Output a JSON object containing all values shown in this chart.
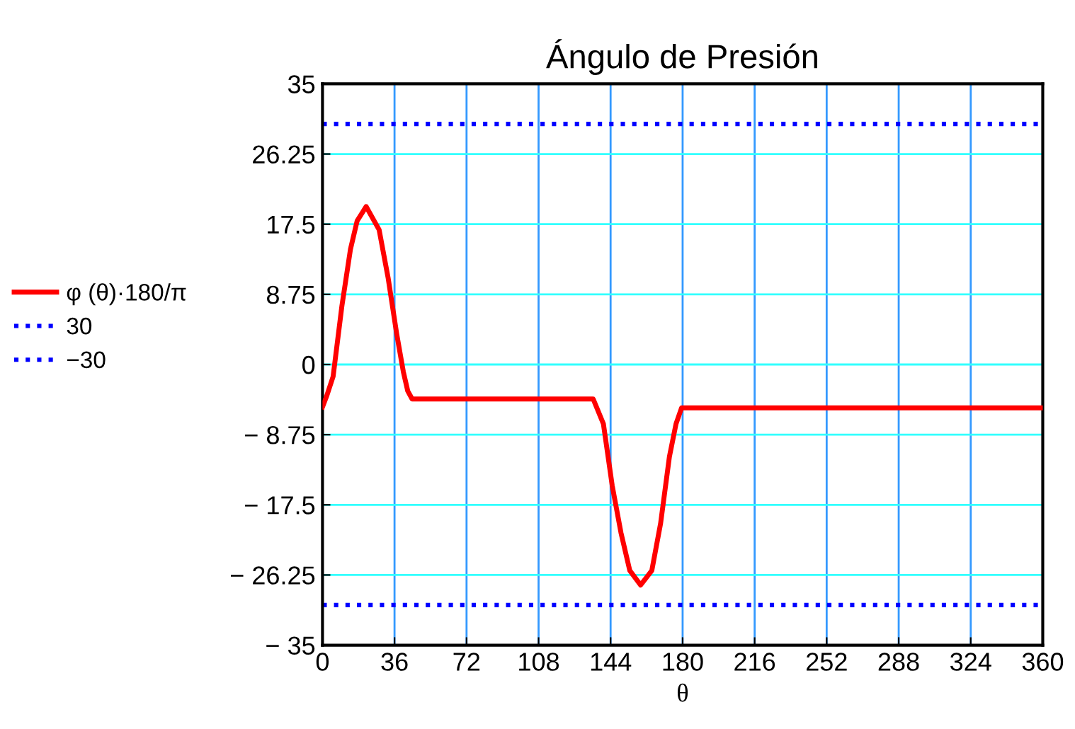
{
  "chart_data": {
    "type": "line",
    "title": "Ángulo de Presión",
    "xlabel": "θ",
    "xlim": [
      0,
      360
    ],
    "xticks": [
      0,
      36,
      72,
      108,
      144,
      180,
      216,
      252,
      288,
      324,
      360
    ],
    "ylim": [
      -35,
      35
    ],
    "yticks": [
      {
        "value": -35,
        "label": "− 35"
      },
      {
        "value": -26.25,
        "label": "− 26.25"
      },
      {
        "value": -17.5,
        "label": "− 17.5"
      },
      {
        "value": -8.75,
        "label": "− 8.75"
      },
      0,
      8.75,
      17.5,
      26.25,
      35
    ],
    "grid": true,
    "legend": "left",
    "line_style": "solid",
    "marker": "none",
    "series": [
      {
        "name": "φ (θ)·180/π",
        "color": "#ff0000",
        "x": [
          0,
          2,
          5.3,
          9.7,
          14,
          17.3,
          21.8,
          28.3,
          32.8,
          37.1,
          40.4,
          42.6,
          44.8,
          90,
          135.3,
          140.4,
          144.8,
          149.2,
          153.6,
          159,
          164.6,
          169,
          173.4,
          176.7,
          179.5,
          270,
          360
        ],
        "values": [
          -5.3,
          -4,
          -1.5,
          7.3,
          14.4,
          17.9,
          19.7,
          16.8,
          10.8,
          3.8,
          -0.9,
          -3.3,
          -4.3,
          -4.3,
          -4.3,
          -7.4,
          -15.1,
          -21,
          -25.7,
          -27.5,
          -25.7,
          -19.8,
          -11.5,
          -7.4,
          -5.4,
          -5.4,
          -5.4
        ]
      }
    ],
    "ref_lines": [
      {
        "axis": "y",
        "value": 30,
        "label": "30",
        "color": "#0000ff",
        "line_style": "dotted"
      },
      {
        "axis": "y",
        "value": -30,
        "label": "−30",
        "color": "#0000ff",
        "line_style": "dotted"
      }
    ]
  }
}
